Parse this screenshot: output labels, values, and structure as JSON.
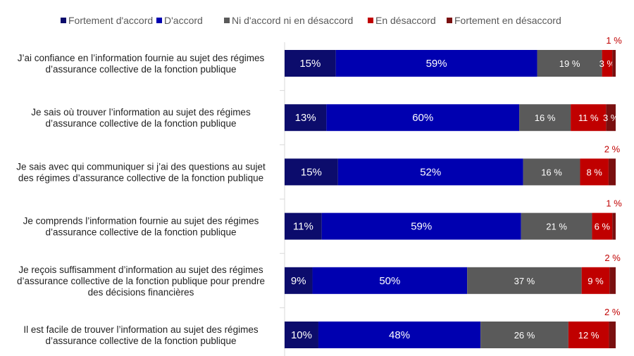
{
  "chart_data": {
    "type": "bar",
    "orientation": "horizontal-stacked-100",
    "legend_position": "top",
    "series": [
      {
        "name": "Fortement d'accord",
        "color": "#0c0c6c"
      },
      {
        "name": "D'accord",
        "color": "#0000b0"
      },
      {
        "name": "Ni d'accord ni en désaccord",
        "color": "#5a5a5a"
      },
      {
        "name": "En désaccord",
        "color": "#c00000"
      },
      {
        "name": "Fortement en désaccord",
        "color": "#7a1010"
      }
    ],
    "categories": [
      {
        "label": [
          "J’ai confiance en l’information fournie au sujet des régimes",
          "d’assurance collective de la fonction publique"
        ],
        "values": [
          15,
          59,
          19,
          3,
          1
        ],
        "labels": [
          "15%",
          "59%",
          "19 %",
          "3 %",
          "1 %"
        ]
      },
      {
        "label": [
          "Je sais où trouver l’information au sujet des régimes",
          "d’assurance collective de la fonction publique"
        ],
        "values": [
          13,
          60,
          16,
          11,
          3
        ],
        "labels": [
          "13%",
          "60%",
          "16 %",
          "11 %",
          "3 %"
        ]
      },
      {
        "label": [
          "Je sais avec qui communiquer si j’ai des questions au sujet",
          "des régimes d’assurance collective de la fonction publique"
        ],
        "values": [
          15,
          52,
          16,
          8,
          2
        ],
        "labels": [
          "15%",
          "52%",
          "16 %",
          "8 %",
          "2 %"
        ]
      },
      {
        "label": [
          "Je comprends l’information fournie au sujet des régimes",
          "d’assurance collective de la fonction publique"
        ],
        "values": [
          11,
          59,
          21,
          6,
          1
        ],
        "labels": [
          "11%",
          "59%",
          "21 %",
          "6 %",
          "1 %"
        ]
      },
      {
        "label": [
          "Je reçois suffisamment d’information au sujet des régimes",
          "d’assurance collective de la fonction publique pour prendre",
          "des décisions financières"
        ],
        "values": [
          9,
          50,
          37,
          9,
          2
        ],
        "labels": [
          "9%",
          "50%",
          "37 %",
          "9 %",
          "2 %"
        ]
      },
      {
        "label": [
          "Il est facile de trouver l’information au sujet des régimes",
          "d’assurance collective de la fonction publique"
        ],
        "values": [
          10,
          48,
          26,
          12,
          2
        ],
        "labels": [
          "10%",
          "48%",
          "26 %",
          "12 %",
          "2 %"
        ]
      }
    ]
  }
}
